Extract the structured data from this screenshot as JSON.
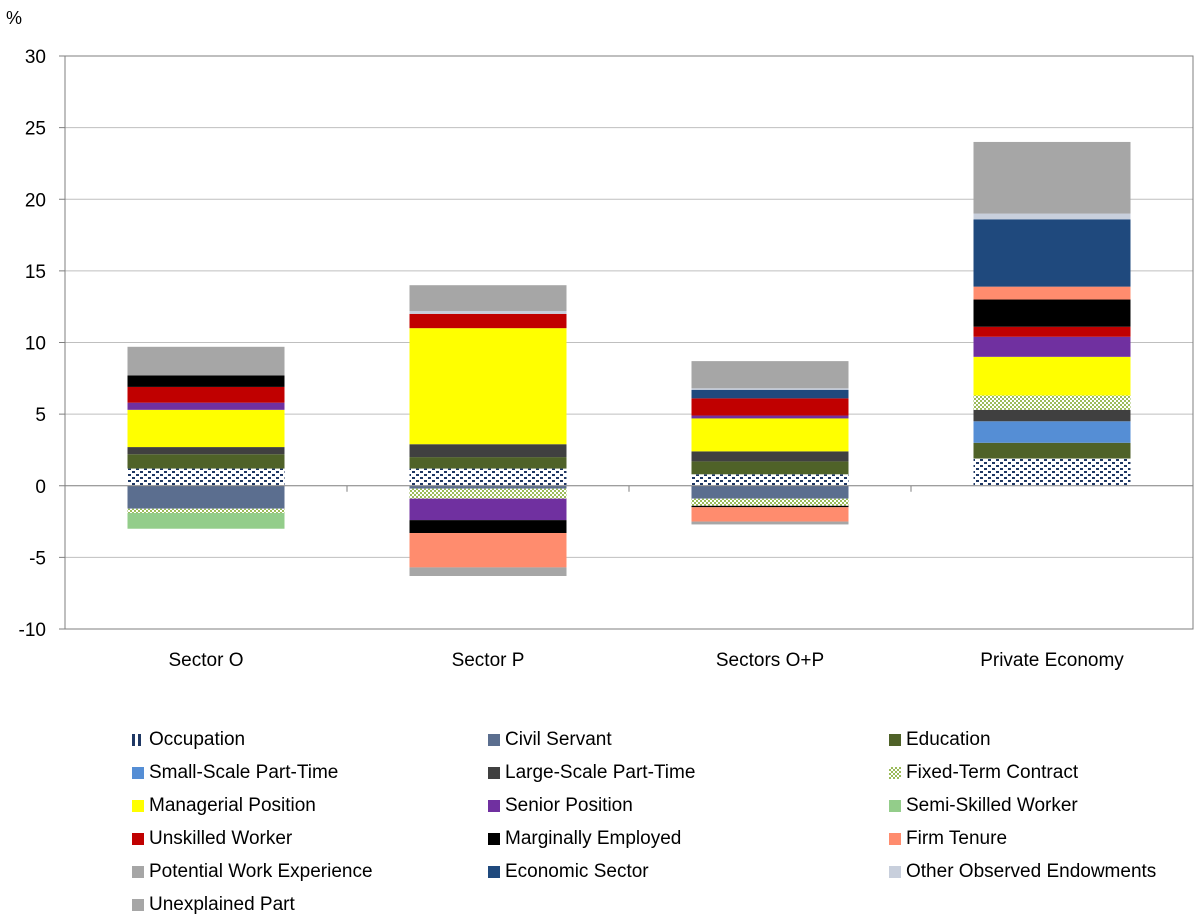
{
  "chart_data": {
    "type": "bar",
    "stacked": true,
    "ylabel": "%",
    "ylim": [
      -10,
      30
    ],
    "yticks": [
      30,
      25,
      20,
      15,
      10,
      5,
      0,
      -5,
      -10
    ],
    "grid": true,
    "legend_position": "bottom",
    "categories": [
      "Sector O",
      "Sector P",
      "Sectors O+P",
      "Private Economy"
    ],
    "series": [
      {
        "name": "Occupation",
        "color": "#1F3864",
        "pattern": "dots",
        "values": [
          1.2,
          1.2,
          0.8,
          1.9
        ]
      },
      {
        "name": "Civil Servant",
        "color": "#5B6E8F",
        "values": [
          -1.6,
          -0.2,
          -0.9,
          0
        ]
      },
      {
        "name": "Education",
        "color": "#4F6228",
        "values": [
          1.0,
          0.8,
          0.9,
          1.1
        ]
      },
      {
        "name": "Small-Scale Part-Time",
        "color": "#558ED5",
        "values": [
          0,
          0,
          0,
          1.5
        ]
      },
      {
        "name": "Large-Scale Part-Time",
        "color": "#404040",
        "values": [
          0.5,
          0.9,
          0.7,
          0.8
        ]
      },
      {
        "name": "Fixed-Term Contract",
        "color": "#C3D69B",
        "pattern": "check",
        "values": [
          -0.3,
          -0.7,
          -0.5,
          1.0
        ]
      },
      {
        "name": "Managerial Position",
        "color": "#FFFF00",
        "values": [
          2.6,
          8.1,
          2.3,
          2.7
        ]
      },
      {
        "name": "Senior Position",
        "color": "#7030A0",
        "values": [
          0.5,
          -1.5,
          0.2,
          1.4
        ]
      },
      {
        "name": "Semi-Skilled Worker",
        "color": "#93CD8A",
        "values": [
          -1.1,
          0,
          0,
          0
        ]
      },
      {
        "name": "Unskilled Worker",
        "color": "#C00000",
        "values": [
          1.1,
          1.0,
          1.2,
          0.7
        ]
      },
      {
        "name": "Marginally Employed",
        "color": "#000000",
        "values": [
          0.8,
          -0.9,
          -0.1,
          1.9
        ]
      },
      {
        "name": "Firm Tenure",
        "color": "#FF8C6E",
        "values": [
          0,
          -2.4,
          -1.0,
          0.9
        ]
      },
      {
        "name": "Potential Work Experience",
        "color": "#A6A6A6",
        "values": [
          0,
          -0.6,
          -0.2,
          0
        ]
      },
      {
        "name": "Economic Sector",
        "color": "#1F497D",
        "values": [
          0,
          0,
          0.6,
          4.7
        ]
      },
      {
        "name": "Other Observed Endowments",
        "color": "#C8CFDC",
        "values": [
          0,
          0.2,
          0.1,
          0.4
        ]
      },
      {
        "name": "Unexplained Part",
        "color": "#A6A6A6",
        "values": [
          2.0,
          1.8,
          1.9,
          5.0
        ]
      }
    ]
  }
}
